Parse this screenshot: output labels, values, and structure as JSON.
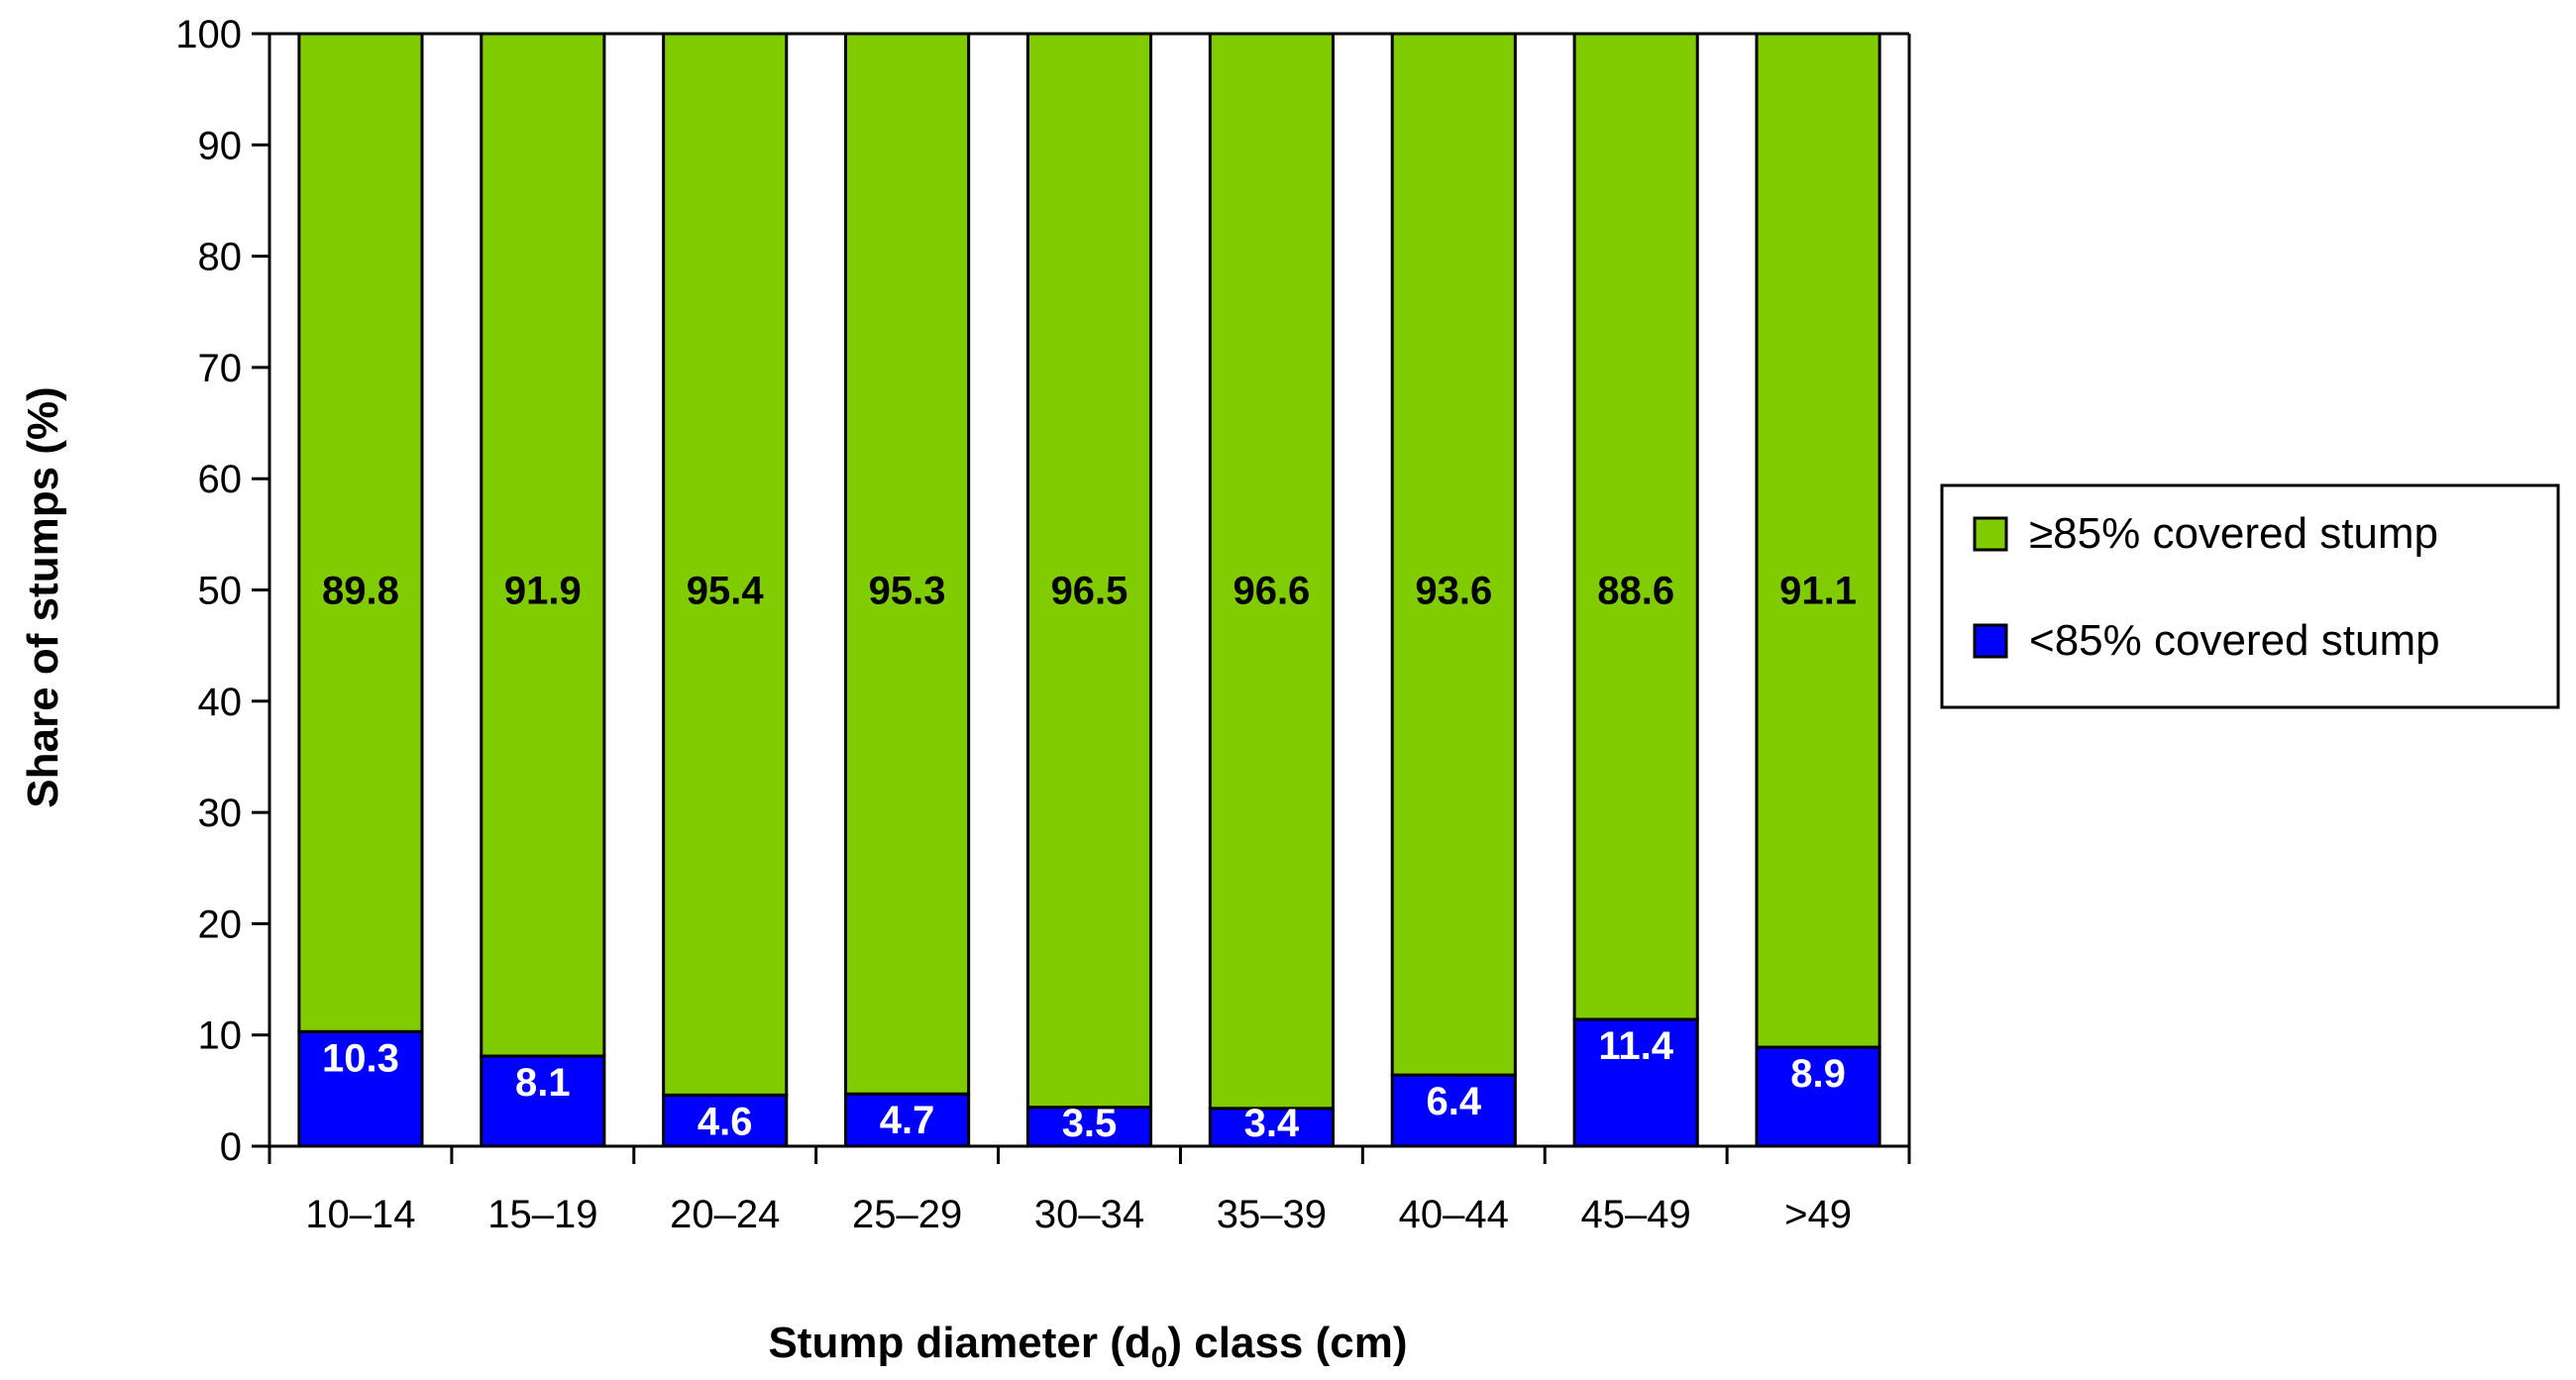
{
  "chart_data": {
    "type": "bar",
    "stacked": true,
    "categories": [
      "10–14",
      "15–19",
      "20–24",
      "25–29",
      "30–34",
      "35–39",
      "40–44",
      "45–49",
      ">49"
    ],
    "series": [
      {
        "name": "<85% covered stump",
        "color": "#0000FF",
        "values": [
          10.3,
          8.1,
          4.6,
          4.7,
          3.5,
          3.4,
          6.4,
          11.4,
          8.9
        ]
      },
      {
        "name": "≥85% covered stump",
        "color": "#80CC00",
        "values": [
          89.8,
          91.9,
          95.4,
          95.3,
          96.5,
          96.6,
          93.6,
          88.6,
          91.1
        ]
      }
    ],
    "ylabel": "Share of stumps (%)",
    "xlabel": {
      "before": "Stump diameter (d",
      "sub": "0",
      "after": ") class (cm)"
    },
    "ylim": [
      0,
      100
    ],
    "yticks": [
      0,
      10,
      20,
      30,
      40,
      50,
      60,
      70,
      80,
      90,
      100
    ],
    "grid": false,
    "legend_position": "right",
    "legend_order": [
      "≥85% covered stump",
      "<85% covered stump"
    ]
  }
}
